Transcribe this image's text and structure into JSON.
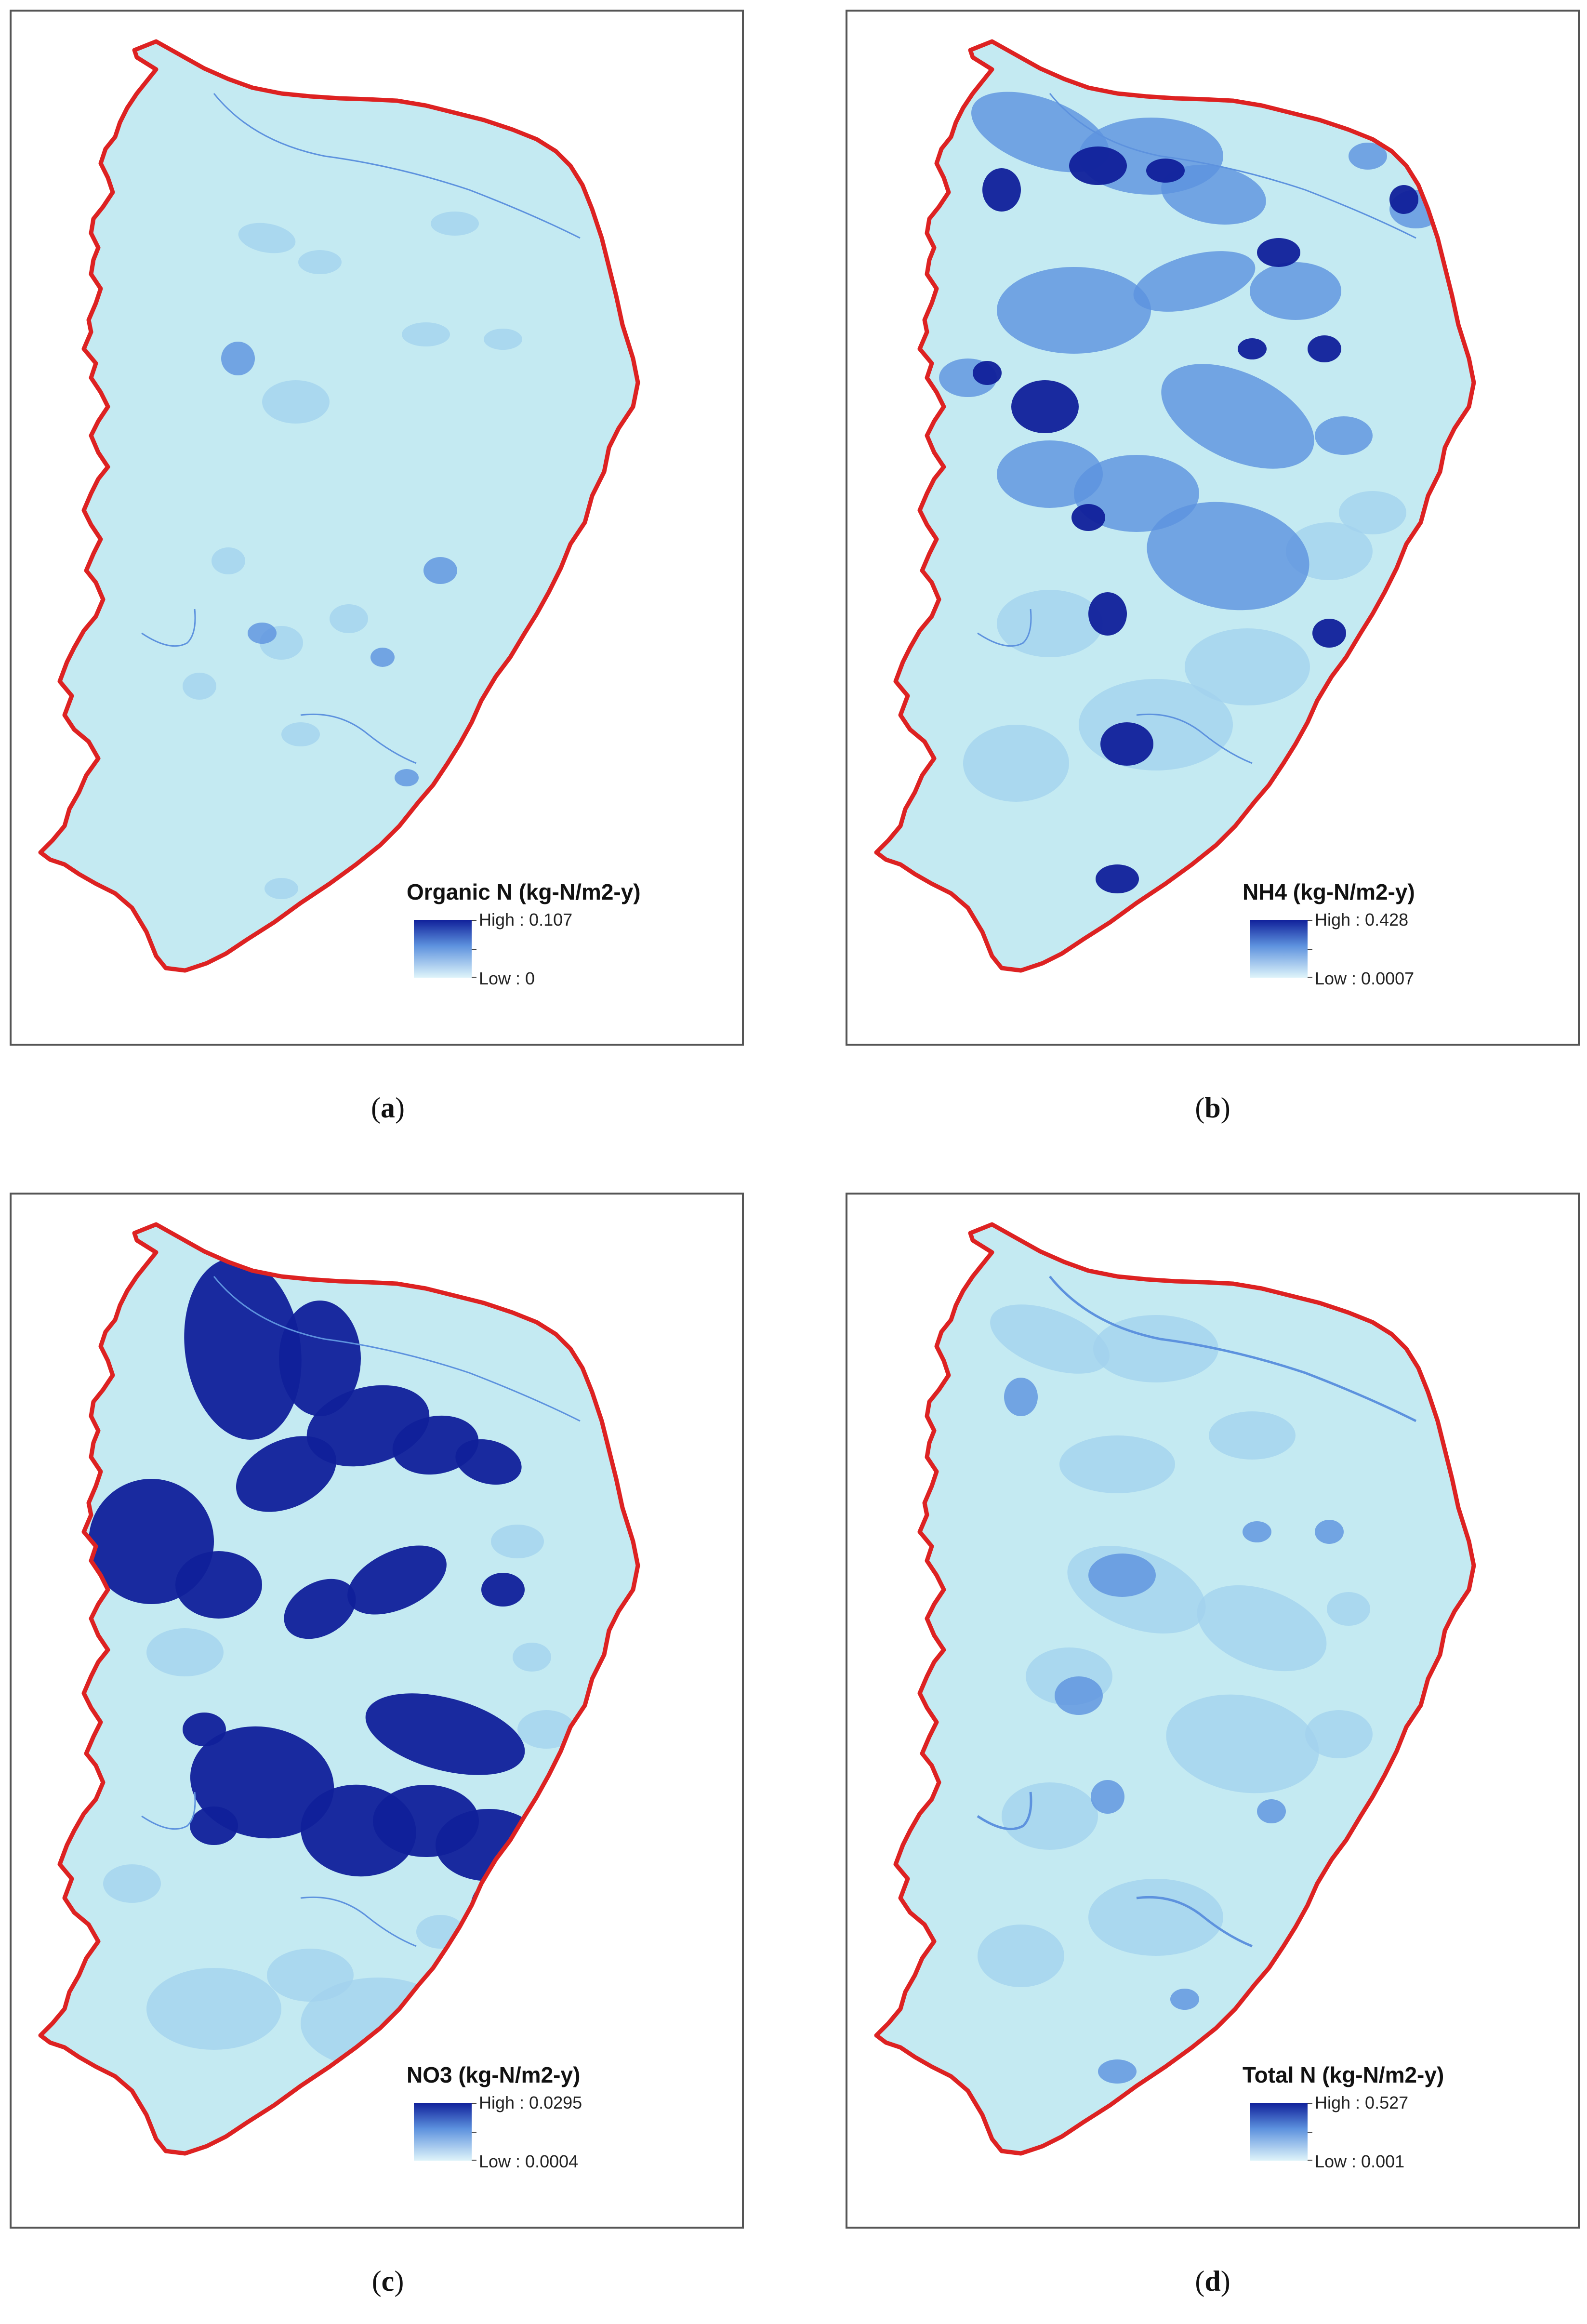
{
  "colors": {
    "background_fill": "#c4eaf2",
    "boundary": "#dd2222",
    "high": "#10209a",
    "medium": "#5d92de",
    "low_mid": "#a2d2ee",
    "low": "#dff4fa"
  },
  "panels": [
    {
      "legend_title": "Organic N (kg-N/m2-y)",
      "high_label": "High : 0.107",
      "low_label": "Low : 0",
      "caption_letter": "a"
    },
    {
      "legend_title": "NH4 (kg-N/m2-y)",
      "high_label": "High : 0.428",
      "low_label": "Low : 0.0007",
      "caption_letter": "b"
    },
    {
      "legend_title": "NO3 (kg-N/m2-y)",
      "high_label": "High : 0.0295",
      "low_label": "Low : 0.0004",
      "caption_letter": "c"
    },
    {
      "legend_title": "Total N (kg-N/m2-y)",
      "high_label": "High : 0.527",
      "low_label": "Low : 0.001",
      "caption_letter": "d"
    }
  ]
}
